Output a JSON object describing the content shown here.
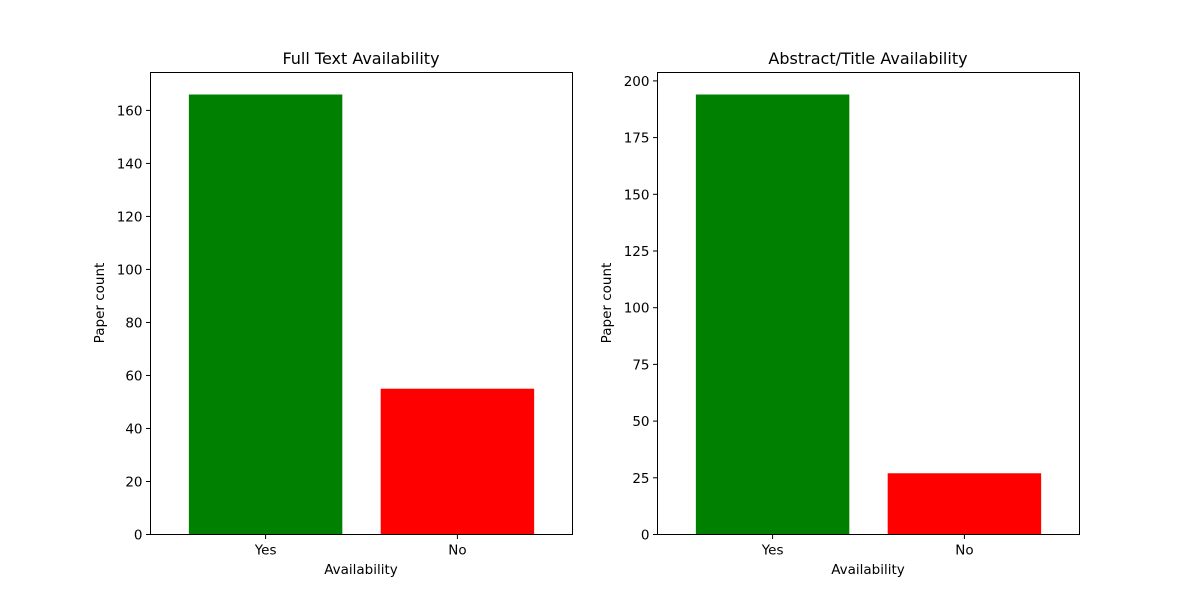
{
  "chart_data": [
    {
      "type": "bar",
      "title": "Full Text Availability",
      "xlabel": "Availability",
      "ylabel": "Paper count",
      "categories": [
        "Yes",
        "No"
      ],
      "values": [
        166,
        55
      ],
      "colors": [
        "#008000",
        "#ff0000"
      ],
      "ylim": [
        0,
        174.3
      ],
      "yticks": [
        0,
        20,
        40,
        60,
        80,
        100,
        120,
        140,
        160
      ],
      "grid": false
    },
    {
      "type": "bar",
      "title": "Abstract/Title Availability",
      "xlabel": "Availability",
      "ylabel": "Paper count",
      "categories": [
        "Yes",
        "No"
      ],
      "values": [
        194,
        27
      ],
      "colors": [
        "#008000",
        "#ff0000"
      ],
      "ylim": [
        0,
        203.7
      ],
      "yticks": [
        0,
        25,
        50,
        75,
        100,
        125,
        150,
        175,
        200
      ],
      "grid": false
    }
  ]
}
